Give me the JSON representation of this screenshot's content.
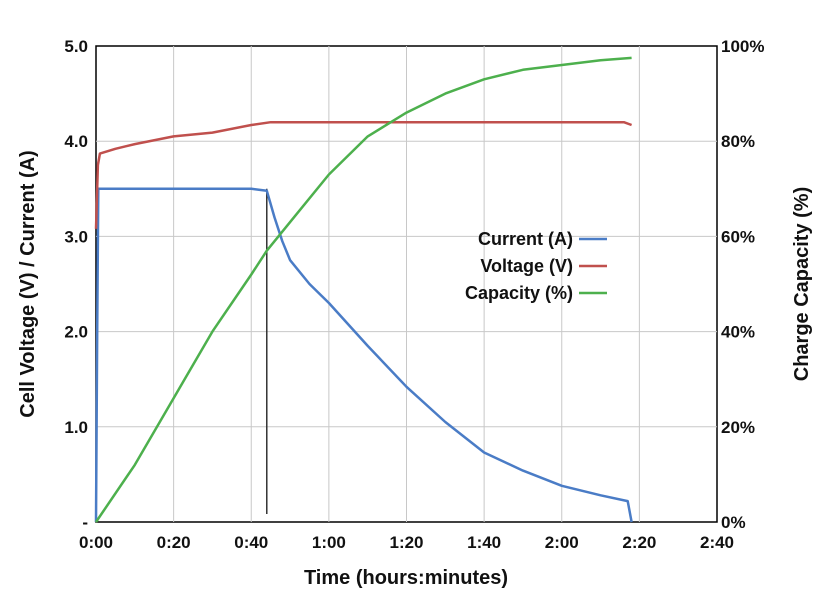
{
  "chart_data": {
    "type": "line",
    "xlabel": "Time (hours:minutes)",
    "ylabel_left": "Cell Voltage (V) / Current (A)",
    "ylabel_right": "Charge Capacity (%)",
    "xlim_minutes": [
      0,
      160
    ],
    "ylim_left": [
      0,
      5
    ],
    "ylim_right": [
      0,
      100
    ],
    "grid": true,
    "legend_position": "center-right",
    "x_ticks": [
      "0:00",
      "0:20",
      "0:40",
      "1:00",
      "1:20",
      "1:40",
      "2:00",
      "2:20",
      "2:40"
    ],
    "y_left_ticks": [
      "-",
      "1.0",
      "2.0",
      "3.0",
      "4.0",
      "5.0"
    ],
    "y_right_ticks": [
      "0%",
      "20%",
      "40%",
      "60%",
      "80%",
      "100%"
    ],
    "marker_line_x_minutes": 44,
    "series": [
      {
        "name": "Current (A)",
        "axis": "left",
        "color": "#4a7cc6",
        "points": [
          [
            0,
            0
          ],
          [
            0.3,
            2.0
          ],
          [
            0.6,
            3.5
          ],
          [
            10,
            3.5
          ],
          [
            20,
            3.5
          ],
          [
            30,
            3.5
          ],
          [
            40,
            3.5
          ],
          [
            44,
            3.48
          ],
          [
            46,
            3.2
          ],
          [
            48,
            2.95
          ],
          [
            50,
            2.75
          ],
          [
            55,
            2.5
          ],
          [
            60,
            2.3
          ],
          [
            70,
            1.85
          ],
          [
            80,
            1.42
          ],
          [
            90,
            1.05
          ],
          [
            100,
            0.73
          ],
          [
            110,
            0.54
          ],
          [
            120,
            0.38
          ],
          [
            130,
            0.28
          ],
          [
            137,
            0.22
          ],
          [
            138,
            0.0
          ]
        ]
      },
      {
        "name": "Voltage (V)",
        "axis": "left",
        "color": "#c0504d",
        "points": [
          [
            0,
            3.08
          ],
          [
            0.5,
            3.75
          ],
          [
            1,
            3.87
          ],
          [
            5,
            3.92
          ],
          [
            10,
            3.97
          ],
          [
            20,
            4.05
          ],
          [
            30,
            4.09
          ],
          [
            40,
            4.17
          ],
          [
            45,
            4.2
          ],
          [
            50,
            4.2
          ],
          [
            60,
            4.2
          ],
          [
            80,
            4.2
          ],
          [
            100,
            4.2
          ],
          [
            120,
            4.2
          ],
          [
            130,
            4.2
          ],
          [
            136,
            4.2
          ],
          [
            138,
            4.17
          ]
        ]
      },
      {
        "name": "Capacity (%)",
        "axis": "right",
        "color": "#4db04d",
        "points": [
          [
            0,
            0
          ],
          [
            10,
            12
          ],
          [
            20,
            26
          ],
          [
            30,
            40
          ],
          [
            40,
            52
          ],
          [
            44,
            57
          ],
          [
            50,
            63
          ],
          [
            60,
            73
          ],
          [
            70,
            81
          ],
          [
            80,
            86
          ],
          [
            90,
            90
          ],
          [
            100,
            93
          ],
          [
            110,
            95
          ],
          [
            120,
            96
          ],
          [
            130,
            97
          ],
          [
            138,
            97.5
          ]
        ]
      }
    ]
  }
}
